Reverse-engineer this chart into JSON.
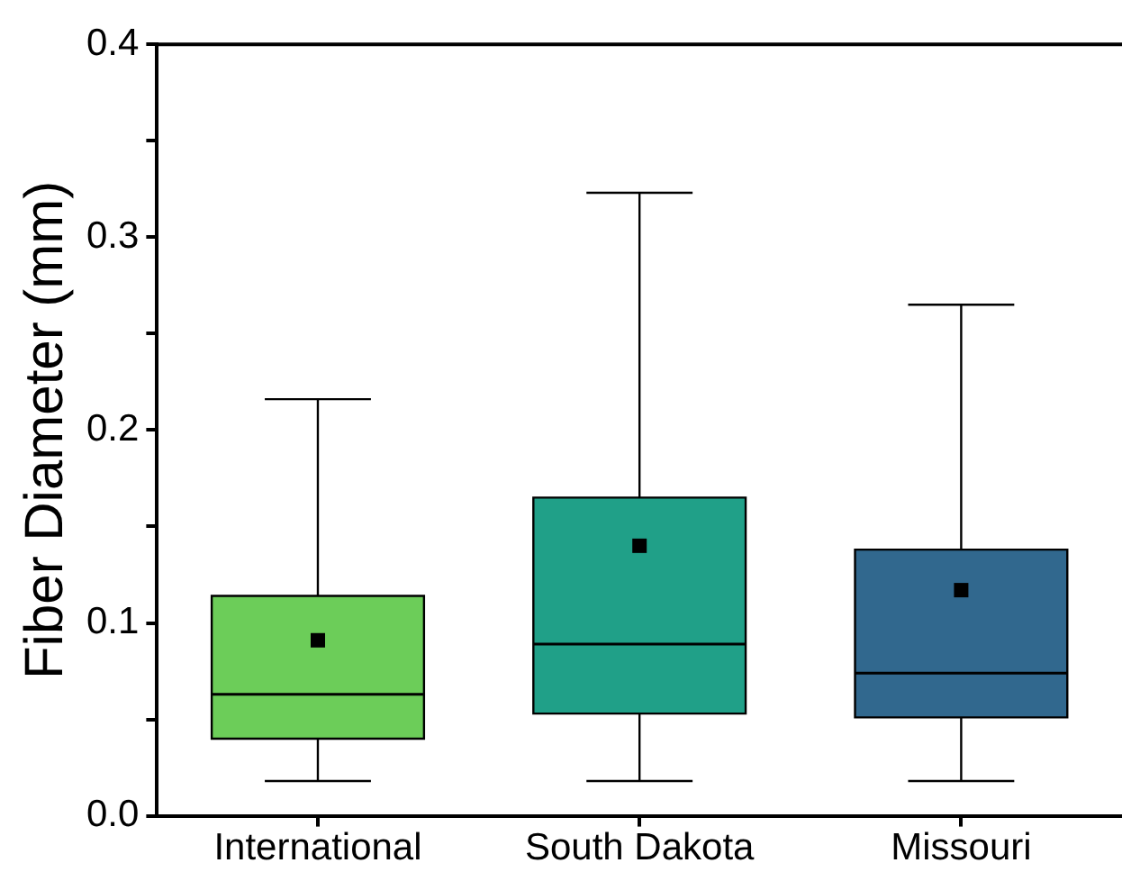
{
  "chart_data": {
    "type": "box",
    "ylabel": "Fiber Diameter (mm)",
    "categories": [
      "International",
      "South Dakota",
      "Missouri"
    ],
    "colors": [
      "#6ccd59",
      "#20a088",
      "#31688e"
    ],
    "boxes": [
      {
        "low": 0.018,
        "q1": 0.04,
        "median": 0.063,
        "q3": 0.114,
        "high": 0.216,
        "mean": 0.091
      },
      {
        "low": 0.018,
        "q1": 0.053,
        "median": 0.089,
        "q3": 0.165,
        "high": 0.323,
        "mean": 0.14
      },
      {
        "low": 0.018,
        "q1": 0.051,
        "median": 0.074,
        "q3": 0.138,
        "high": 0.265,
        "mean": 0.117
      }
    ],
    "marker": "square",
    "ylim": [
      0,
      0.4
    ],
    "yticks": [
      {
        "value": 0,
        "label": "0.0"
      },
      {
        "value": 0.05,
        "label": null
      },
      {
        "value": 0.1,
        "label": "0.1"
      },
      {
        "value": 0.15,
        "label": null
      },
      {
        "value": 0.2,
        "label": "0.2"
      },
      {
        "value": 0.25,
        "label": null
      },
      {
        "value": 0.3,
        "label": "0.3"
      },
      {
        "value": 0.35,
        "label": null
      },
      {
        "value": 0.4,
        "label": "0.4"
      }
    ],
    "grid": false,
    "legend": false
  }
}
